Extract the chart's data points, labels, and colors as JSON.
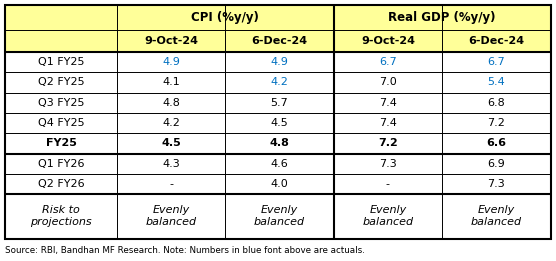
{
  "source_note": "Source: RBI, Bandhan MF Research. Note: Numbers in blue font above are actuals.",
  "header2": [
    "9-Oct-24",
    "6-Dec-24",
    "9-Oct-24",
    "6-Dec-24"
  ],
  "rows": [
    {
      "label": "Q1 FY25",
      "bold": false,
      "italic": false,
      "values": [
        "4.9",
        "4.9",
        "6.7",
        "6.7"
      ],
      "blue": [
        true,
        true,
        true,
        true
      ]
    },
    {
      "label": "Q2 FY25",
      "bold": false,
      "italic": false,
      "values": [
        "4.1",
        "4.2",
        "7.0",
        "5.4"
      ],
      "blue": [
        false,
        true,
        false,
        true
      ]
    },
    {
      "label": "Q3 FY25",
      "bold": false,
      "italic": false,
      "values": [
        "4.8",
        "5.7",
        "7.4",
        "6.8"
      ],
      "blue": [
        false,
        false,
        false,
        false
      ]
    },
    {
      "label": "Q4 FY25",
      "bold": false,
      "italic": false,
      "values": [
        "4.2",
        "4.5",
        "7.4",
        "7.2"
      ],
      "blue": [
        false,
        false,
        false,
        false
      ]
    },
    {
      "label": "FY25",
      "bold": true,
      "italic": false,
      "values": [
        "4.5",
        "4.8",
        "7.2",
        "6.6"
      ],
      "blue": [
        false,
        false,
        false,
        false
      ]
    },
    {
      "label": "Q1 FY26",
      "bold": false,
      "italic": false,
      "values": [
        "4.3",
        "4.6",
        "7.3",
        "6.9"
      ],
      "blue": [
        false,
        false,
        false,
        false
      ]
    },
    {
      "label": "Q2 FY26",
      "bold": false,
      "italic": false,
      "values": [
        "-",
        "4.0",
        "-",
        "7.3"
      ],
      "blue": [
        false,
        false,
        false,
        false
      ]
    },
    {
      "label": "Risk to\nprojections",
      "bold": false,
      "italic": true,
      "values": [
        "Evenly\nbalanced",
        "Evenly\nbalanced",
        "Evenly\nbalanced",
        "Evenly\nbalanced"
      ],
      "blue": [
        false,
        false,
        false,
        false
      ]
    }
  ],
  "bg_header": "#FFFF99",
  "bg_body": "#FFFFFF",
  "border_color": "#000000",
  "blue_color": "#0070C0",
  "black_color": "#000000",
  "fig_w": 5.56,
  "fig_h": 2.61,
  "dpi": 100
}
